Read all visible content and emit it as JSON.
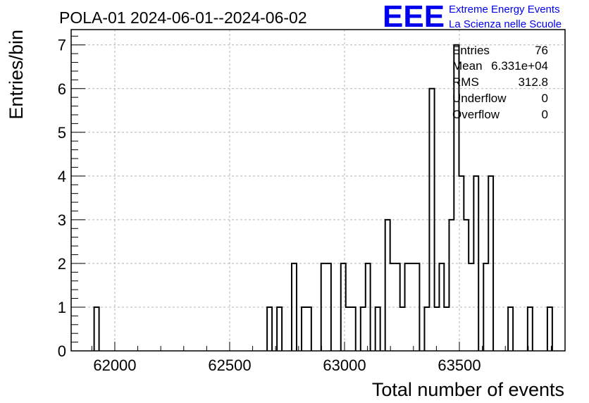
{
  "chart_data": {
    "type": "bar",
    "title": "POLA-01 2024-06-01--2024-06-02",
    "xlabel": "Total number of events",
    "ylabel": "Entries/bin",
    "xlim": [
      61810,
      63960
    ],
    "ylim": [
      0,
      7.35
    ],
    "xticks": [
      62000,
      62500,
      63000,
      63500
    ],
    "yticks": [
      0,
      1,
      2,
      3,
      4,
      5,
      6,
      7
    ],
    "grid": true,
    "bin_width": 21.4,
    "bins": [
      {
        "x": 61910,
        "y": 1
      },
      {
        "x": 62663,
        "y": 1
      },
      {
        "x": 62706,
        "y": 1
      },
      {
        "x": 62770,
        "y": 2
      },
      {
        "x": 62813,
        "y": 1
      },
      {
        "x": 62834,
        "y": 1
      },
      {
        "x": 62898,
        "y": 2
      },
      {
        "x": 62920,
        "y": 2
      },
      {
        "x": 62984,
        "y": 2
      },
      {
        "x": 63005,
        "y": 1
      },
      {
        "x": 63027,
        "y": 1
      },
      {
        "x": 63070,
        "y": 1
      },
      {
        "x": 63091,
        "y": 2
      },
      {
        "x": 63134,
        "y": 1
      },
      {
        "x": 63177,
        "y": 3
      },
      {
        "x": 63198,
        "y": 2
      },
      {
        "x": 63220,
        "y": 2
      },
      {
        "x": 63241,
        "y": 1
      },
      {
        "x": 63262,
        "y": 2
      },
      {
        "x": 63284,
        "y": 2
      },
      {
        "x": 63305,
        "y": 2
      },
      {
        "x": 63348,
        "y": 1
      },
      {
        "x": 63370,
        "y": 6
      },
      {
        "x": 63391,
        "y": 1
      },
      {
        "x": 63412,
        "y": 2
      },
      {
        "x": 63434,
        "y": 1
      },
      {
        "x": 63455,
        "y": 3
      },
      {
        "x": 63477,
        "y": 7
      },
      {
        "x": 63498,
        "y": 4
      },
      {
        "x": 63519,
        "y": 3
      },
      {
        "x": 63541,
        "y": 2
      },
      {
        "x": 63562,
        "y": 4
      },
      {
        "x": 63605,
        "y": 2
      },
      {
        "x": 63626,
        "y": 4
      },
      {
        "x": 63712,
        "y": 1
      },
      {
        "x": 63797,
        "y": 1
      },
      {
        "x": 63883,
        "y": 1
      }
    ],
    "stats": {
      "entries_label": "Entries",
      "entries_value": "76",
      "mean_label": "Mean",
      "mean_value": "6.331e+04",
      "rms_label": "RMS",
      "rms_value": "312.8",
      "underflow_label": "Underflow",
      "underflow_value": "0",
      "overflow_label": "Overflow",
      "overflow_value": "0"
    }
  },
  "logo": {
    "letters": "EEE",
    "line1": "Extreme Energy Events",
    "line2": "La Scienza nelle Scuole",
    "color": "#0000ee"
  }
}
